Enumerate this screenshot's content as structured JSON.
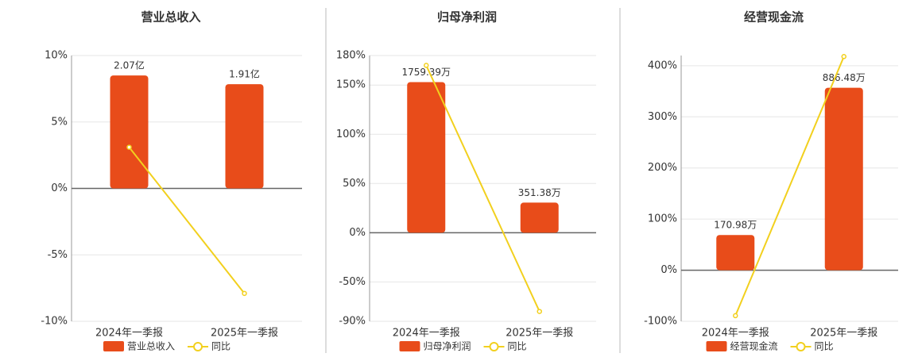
{
  "chart_data": [
    {
      "type": "bar",
      "title": "营业总收入",
      "categories": [
        "2024年一季报",
        "2025年一季报"
      ],
      "series": [
        {
          "name": "营业总收入",
          "type": "bar",
          "color": "#e84c1a",
          "values": [
            2.07,
            1.91
          ],
          "value_labels": [
            "2.07亿",
            "1.91亿"
          ]
        },
        {
          "name": "同比",
          "type": "line",
          "color": "#f2d01e",
          "values": [
            3.1,
            -7.9
          ]
        }
      ],
      "ylim": [
        -10,
        10
      ],
      "yticks": [
        {
          "value": -10,
          "label": "-10%"
        },
        {
          "value": -5,
          "label": "-5%"
        },
        {
          "value": 0,
          "label": "0%"
        },
        {
          "value": 5,
          "label": "5%"
        },
        {
          "value": 10,
          "label": "10%"
        }
      ]
    },
    {
      "type": "bar",
      "title": "归母净利润",
      "categories": [
        "2024年一季报",
        "2025年一季报"
      ],
      "series": [
        {
          "name": "归母净利润",
          "type": "bar",
          "color": "#e84c1a",
          "values": [
            1759.39,
            351.38
          ],
          "value_labels": [
            "1759.39万",
            "351.38万"
          ]
        },
        {
          "name": "同比",
          "type": "line",
          "color": "#f2d01e",
          "values": [
            170,
            -80
          ]
        }
      ],
      "ylim": [
        -90,
        180
      ],
      "yticks": [
        {
          "value": -90,
          "label": "-90%"
        },
        {
          "value": -50,
          "label": "-50%"
        },
        {
          "value": 0,
          "label": "0%"
        },
        {
          "value": 50,
          "label": "50%"
        },
        {
          "value": 100,
          "label": "100%"
        },
        {
          "value": 150,
          "label": "150%"
        },
        {
          "value": 180,
          "label": "180%"
        }
      ]
    },
    {
      "type": "bar",
      "title": "经营现金流",
      "categories": [
        "2024年一季报",
        "2025年一季报"
      ],
      "series": [
        {
          "name": "经营现金流",
          "type": "bar",
          "color": "#e84c1a",
          "values": [
            170.98,
            886.48
          ],
          "value_labels": [
            "170.98万",
            "886.48万"
          ]
        },
        {
          "name": "同比",
          "type": "line",
          "color": "#f2d01e",
          "values": [
            -89,
            418
          ]
        }
      ],
      "ylim": [
        -100,
        420
      ],
      "yticks": [
        {
          "value": -100,
          "label": "-100%"
        },
        {
          "value": 0,
          "label": "0%"
        },
        {
          "value": 100,
          "label": "100%"
        },
        {
          "value": 200,
          "label": "200%"
        },
        {
          "value": 300,
          "label": "300%"
        },
        {
          "value": 400,
          "label": "400%"
        }
      ]
    }
  ]
}
